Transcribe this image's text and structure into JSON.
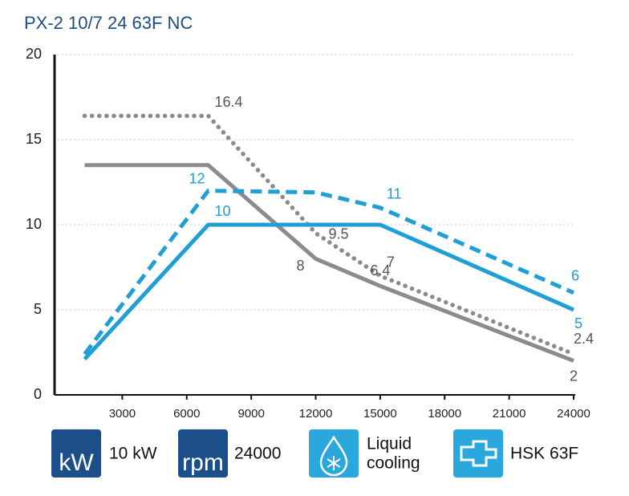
{
  "chart_data": {
    "type": "line",
    "title": "PX-2 10/7 24 63F NC",
    "x": [
      1250,
      7000,
      12000,
      15000,
      24000
    ],
    "xlim": [
      0,
      24000
    ],
    "xticks": [
      3000,
      6000,
      9000,
      12000,
      15000,
      18000,
      21000,
      24000
    ],
    "ylim": [
      0,
      20
    ],
    "yticks": [
      0,
      5,
      10,
      15,
      20
    ],
    "grid": true,
    "series": [
      {
        "color": "#8a8b8e",
        "style": "dotted",
        "values": [
          16.4,
          16.4,
          9.5,
          7,
          2.4
        ],
        "value_labels": [
          null,
          "16.4",
          "9.5",
          "7",
          "2.4"
        ]
      },
      {
        "color": "#8a8b8e",
        "style": "solid",
        "values": [
          13.5,
          13.5,
          8,
          6.4,
          2
        ],
        "value_labels": [
          null,
          null,
          "8",
          "6.4",
          "2"
        ]
      },
      {
        "color": "#1f9fd5",
        "style": "dashed",
        "values": [
          2.4,
          12,
          11.9,
          11,
          6
        ],
        "value_labels": [
          null,
          "12",
          null,
          "11",
          "6"
        ]
      },
      {
        "color": "#1f9fd5",
        "style": "solid",
        "values": [
          2.1,
          10,
          10,
          10,
          5
        ],
        "value_labels": [
          null,
          "10",
          null,
          null,
          "5"
        ]
      }
    ]
  },
  "specs": [
    {
      "icon": "kW",
      "label": [
        "10 kW"
      ]
    },
    {
      "icon": "rpm",
      "label": [
        "24000"
      ]
    },
    {
      "icon": "",
      "label": [
        "Liquid",
        "cooling"
      ]
    },
    {
      "icon": "",
      "label": [
        "HSK 63F"
      ]
    }
  ]
}
